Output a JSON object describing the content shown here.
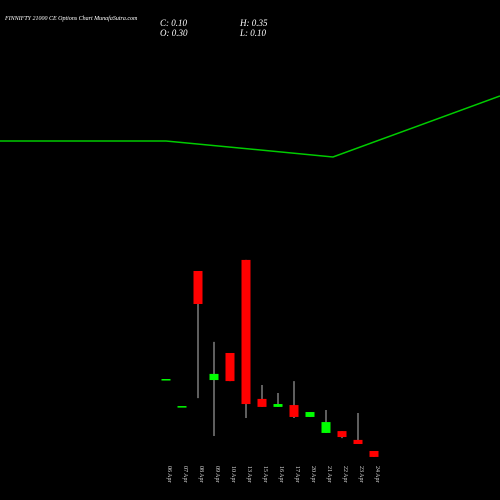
{
  "chart_data": {
    "type": "candlestick",
    "title": "FINNIFTY 21000 CE Options Chart MunafaSutra.com",
    "summary": [
      "C: 0.10",
      "O: 0.30",
      "H: 0.35",
      "L: 0.10"
    ],
    "categories": [
      "06 Apr",
      "07 Apr",
      "08 Apr",
      "09 Apr",
      "10 Apr",
      "13 Apr",
      "15 Apr",
      "16 Apr",
      "17 Apr",
      "20 Apr",
      "21 Apr",
      "22 Apr",
      "23 Apr",
      "24 Apr"
    ],
    "open": [
      39.5,
      26.3,
      92.2,
      39.0,
      52.2,
      97.6,
      29.8,
      25.9,
      26.8,
      21.0,
      13.2,
      14.1,
      9.8,
      4.4
    ],
    "high": [
      39.5,
      26.3,
      92.2,
      57.6,
      52.2,
      97.6,
      36.6,
      32.7,
      38.5,
      23.4,
      24.4,
      14.1,
      22.9,
      4.4
    ],
    "low": [
      39.5,
      26.3,
      30.2,
      11.7,
      38.5,
      20.5,
      25.9,
      25.9,
      20.5,
      21.0,
      13.2,
      10.7,
      7.8,
      1.5
    ],
    "close": [
      39.5,
      26.3,
      76.1,
      42.0,
      38.5,
      27.3,
      25.9,
      27.3,
      21.0,
      23.4,
      18.5,
      11.2,
      7.8,
      1.5
    ],
    "up_color": "#00ff00",
    "down_color": "#ff0000",
    "ylim": [
      0,
      100
    ]
  }
}
